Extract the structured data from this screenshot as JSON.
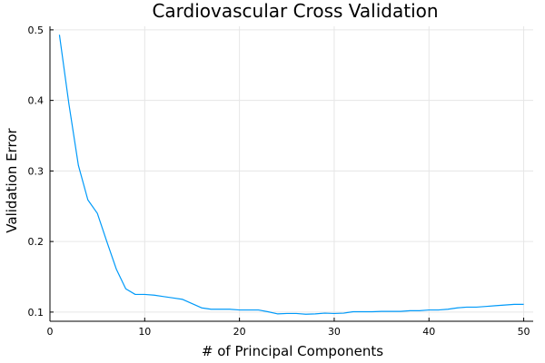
{
  "chart_data": {
    "type": "line",
    "title": "Cardiovascular Cross Validation",
    "xlabel": "# of Principal Components",
    "ylabel": "Validation Error",
    "xlim": [
      0,
      51
    ],
    "ylim": [
      0.087,
      0.505
    ],
    "x_ticks": [
      0,
      10,
      20,
      30,
      40,
      50
    ],
    "y_ticks": [
      0.1,
      0.2,
      0.3,
      0.4,
      0.5
    ],
    "x_tick_labels": [
      "0",
      "10",
      "20",
      "30",
      "40",
      "50"
    ],
    "y_tick_labels": [
      "0.1",
      "0.2",
      "0.3",
      "0.4",
      "0.5"
    ],
    "grid": true,
    "series": [
      {
        "name": "y1",
        "color": "#009af9",
        "x": [
          1,
          2,
          3,
          4,
          5,
          6,
          7,
          8,
          9,
          10,
          11,
          12,
          13,
          14,
          15,
          16,
          17,
          18,
          19,
          20,
          21,
          22,
          23,
          24,
          25,
          26,
          27,
          28,
          29,
          30,
          31,
          32,
          33,
          34,
          35,
          36,
          37,
          38,
          39,
          40,
          41,
          42,
          43,
          44,
          45,
          46,
          47,
          48,
          49,
          50
        ],
        "values": [
          0.493,
          0.395,
          0.308,
          0.259,
          0.24,
          0.2,
          0.161,
          0.133,
          0.125,
          0.125,
          0.124,
          0.122,
          0.12,
          0.118,
          0.112,
          0.106,
          0.104,
          0.104,
          0.104,
          0.103,
          0.103,
          0.103,
          0.1005,
          0.0975,
          0.098,
          0.098,
          0.097,
          0.0975,
          0.0985,
          0.098,
          0.0985,
          0.1005,
          0.1005,
          0.1005,
          0.101,
          0.101,
          0.101,
          0.102,
          0.102,
          0.103,
          0.103,
          0.104,
          0.106,
          0.107,
          0.107,
          0.108,
          0.109,
          0.11,
          0.111,
          0.111
        ]
      }
    ]
  }
}
